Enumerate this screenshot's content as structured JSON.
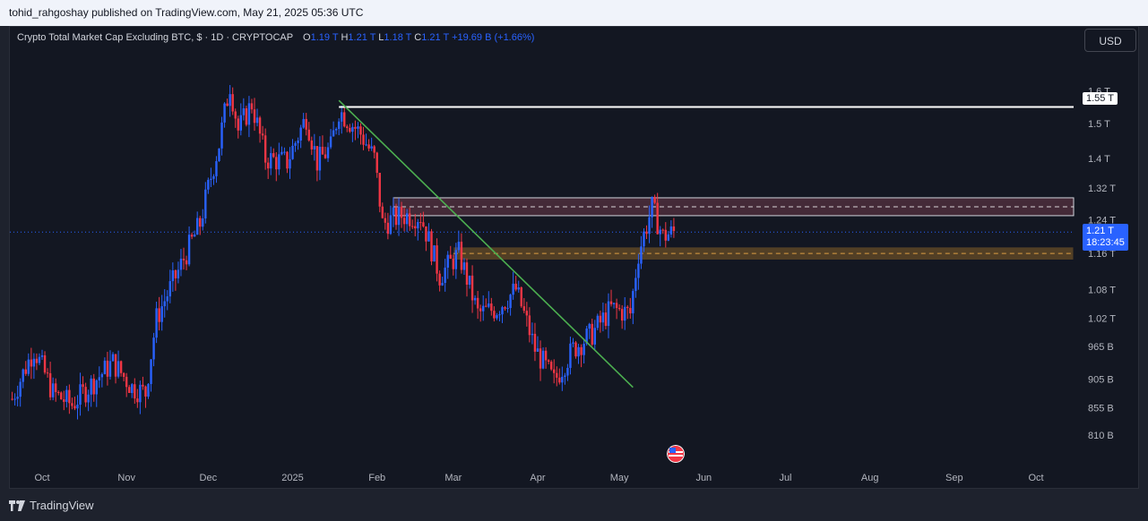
{
  "topbar": {
    "text": "tohid_rahgoshay published on TradingView.com, May 21, 2025 05:36 UTC"
  },
  "legend": {
    "title": "Crypto Total Market Cap Excluding BTC, $ · 1D · CRYPTOCAP",
    "o_label": "O",
    "o_value": "1.19 T",
    "h_label": "H",
    "h_value": "1.21 T",
    "l_label": "L",
    "l_value": "1.18 T",
    "c_label": "C",
    "c_value": "1.21 T",
    "change": "+19.69 B (+1.66%)"
  },
  "currency_button": "USD",
  "price_tag": "1.55 T",
  "live_price": "1.21 T",
  "live_countdown": "18:23:45",
  "footer": {
    "brand": "TradingView"
  },
  "colors": {
    "up": "#2962ff",
    "down": "#f23645",
    "background": "#131722",
    "trendline": "#4caf50",
    "resistance_zone": "#6e3a4a",
    "support_zone": "#a0702a"
  },
  "chart_data": {
    "type": "candlestick",
    "title": "Crypto Total Market Cap Excluding BTC",
    "interval": "1D",
    "x_ticks": [
      "Oct",
      "Nov",
      "Dec",
      "2025",
      "Feb",
      "Mar",
      "Apr",
      "May",
      "Jun",
      "Jul",
      "Aug",
      "Sep",
      "Oct"
    ],
    "y_ticks": [
      "1.6 T",
      "1.5 T",
      "1.4 T",
      "1.32 T",
      "1.24 T",
      "1.16 T",
      "1.08 T",
      "1.02 T",
      "965 B",
      "905 B",
      "855 B",
      "810 B"
    ],
    "y_scale": "log",
    "ylim_billions": [
      790,
      1680
    ],
    "close_path_billions": [
      [
        "2024-09-20",
        870
      ],
      [
        "2024-09-28",
        960
      ],
      [
        "2024-10-05",
        880
      ],
      [
        "2024-10-12",
        860
      ],
      [
        "2024-10-20",
        900
      ],
      [
        "2024-10-27",
        935
      ],
      [
        "2024-11-03",
        890
      ],
      [
        "2024-11-08",
        880
      ],
      [
        "2024-11-12",
        1020
      ],
      [
        "2024-11-20",
        1120
      ],
      [
        "2024-11-28",
        1230
      ],
      [
        "2024-12-05",
        1440
      ],
      [
        "2024-12-09",
        1620
      ],
      [
        "2024-12-12",
        1480
      ],
      [
        "2024-12-17",
        1560
      ],
      [
        "2024-12-22",
        1400
      ],
      [
        "2024-12-30",
        1390
      ],
      [
        "2025-01-06",
        1520
      ],
      [
        "2025-01-10",
        1390
      ],
      [
        "2025-01-15",
        1430
      ],
      [
        "2025-01-18",
        1540
      ],
      [
        "2025-01-26",
        1470
      ],
      [
        "2025-01-31",
        1400
      ],
      [
        "2025-02-03",
        1230
      ],
      [
        "2025-02-10",
        1250
      ],
      [
        "2025-02-17",
        1250
      ],
      [
        "2025-02-24",
        1110
      ],
      [
        "2025-03-03",
        1160
      ],
      [
        "2025-03-10",
        1030
      ],
      [
        "2025-03-17",
        1040
      ],
      [
        "2025-03-24",
        1080
      ],
      [
        "2025-03-31",
        960
      ],
      [
        "2025-04-07",
        900
      ],
      [
        "2025-04-14",
        960
      ],
      [
        "2025-04-21",
        990
      ],
      [
        "2025-04-28",
        1040
      ],
      [
        "2025-05-05",
        1030
      ],
      [
        "2025-05-08",
        1160
      ],
      [
        "2025-05-13",
        1270
      ],
      [
        "2025-05-17",
        1200
      ],
      [
        "2025-05-21",
        1210
      ]
    ],
    "last_price": "1.21 T",
    "horizontal_line": {
      "price": "1.55 T",
      "from": "2025-01-18"
    },
    "trendline": {
      "from": [
        "2025-01-18",
        1570
      ],
      "to": [
        "2025-05-06",
        890
      ]
    },
    "zones": [
      {
        "name": "resistance",
        "from": "2025-02-07",
        "low": 1250,
        "high": 1295
      },
      {
        "name": "support",
        "from": "2025-03-01",
        "low": 1145,
        "high": 1175
      }
    ]
  }
}
